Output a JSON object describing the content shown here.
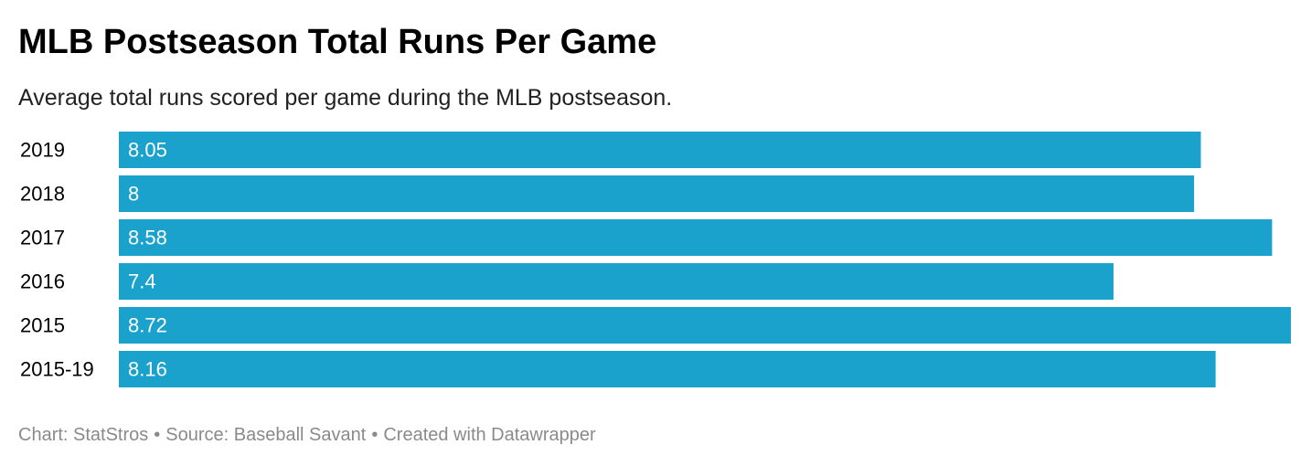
{
  "header": {
    "title": "MLB Postseason Total Runs Per Game",
    "subtitle": "Average total runs scored per game during the MLB postseason."
  },
  "footer": {
    "chart_credit": "Chart: StatStros",
    "source": "Source: Baseball Savant",
    "created_with": "Created with Datawrapper",
    "separator": "•"
  },
  "colors": {
    "bar": "#1aa1cc",
    "bar_label": "#ffffff",
    "category_label": "#000000",
    "footer_text": "#8a8a8a"
  },
  "chart_data": {
    "type": "bar",
    "orientation": "horizontal",
    "title": "MLB Postseason Total Runs Per Game",
    "subtitle": "Average total runs scored per game during the MLB postseason.",
    "categories": [
      "2019",
      "2018",
      "2017",
      "2016",
      "2015",
      "2015-19"
    ],
    "values": [
      8.05,
      8,
      8.58,
      7.4,
      8.72,
      8.16
    ],
    "value_labels": [
      "8.05",
      "8",
      "8.58",
      "7.4",
      "8.72",
      "8.16"
    ],
    "xlim": [
      0,
      8.72
    ],
    "xlabel": "",
    "ylabel": "",
    "grid": false,
    "legend": "none",
    "data_labels": "inside-left"
  }
}
